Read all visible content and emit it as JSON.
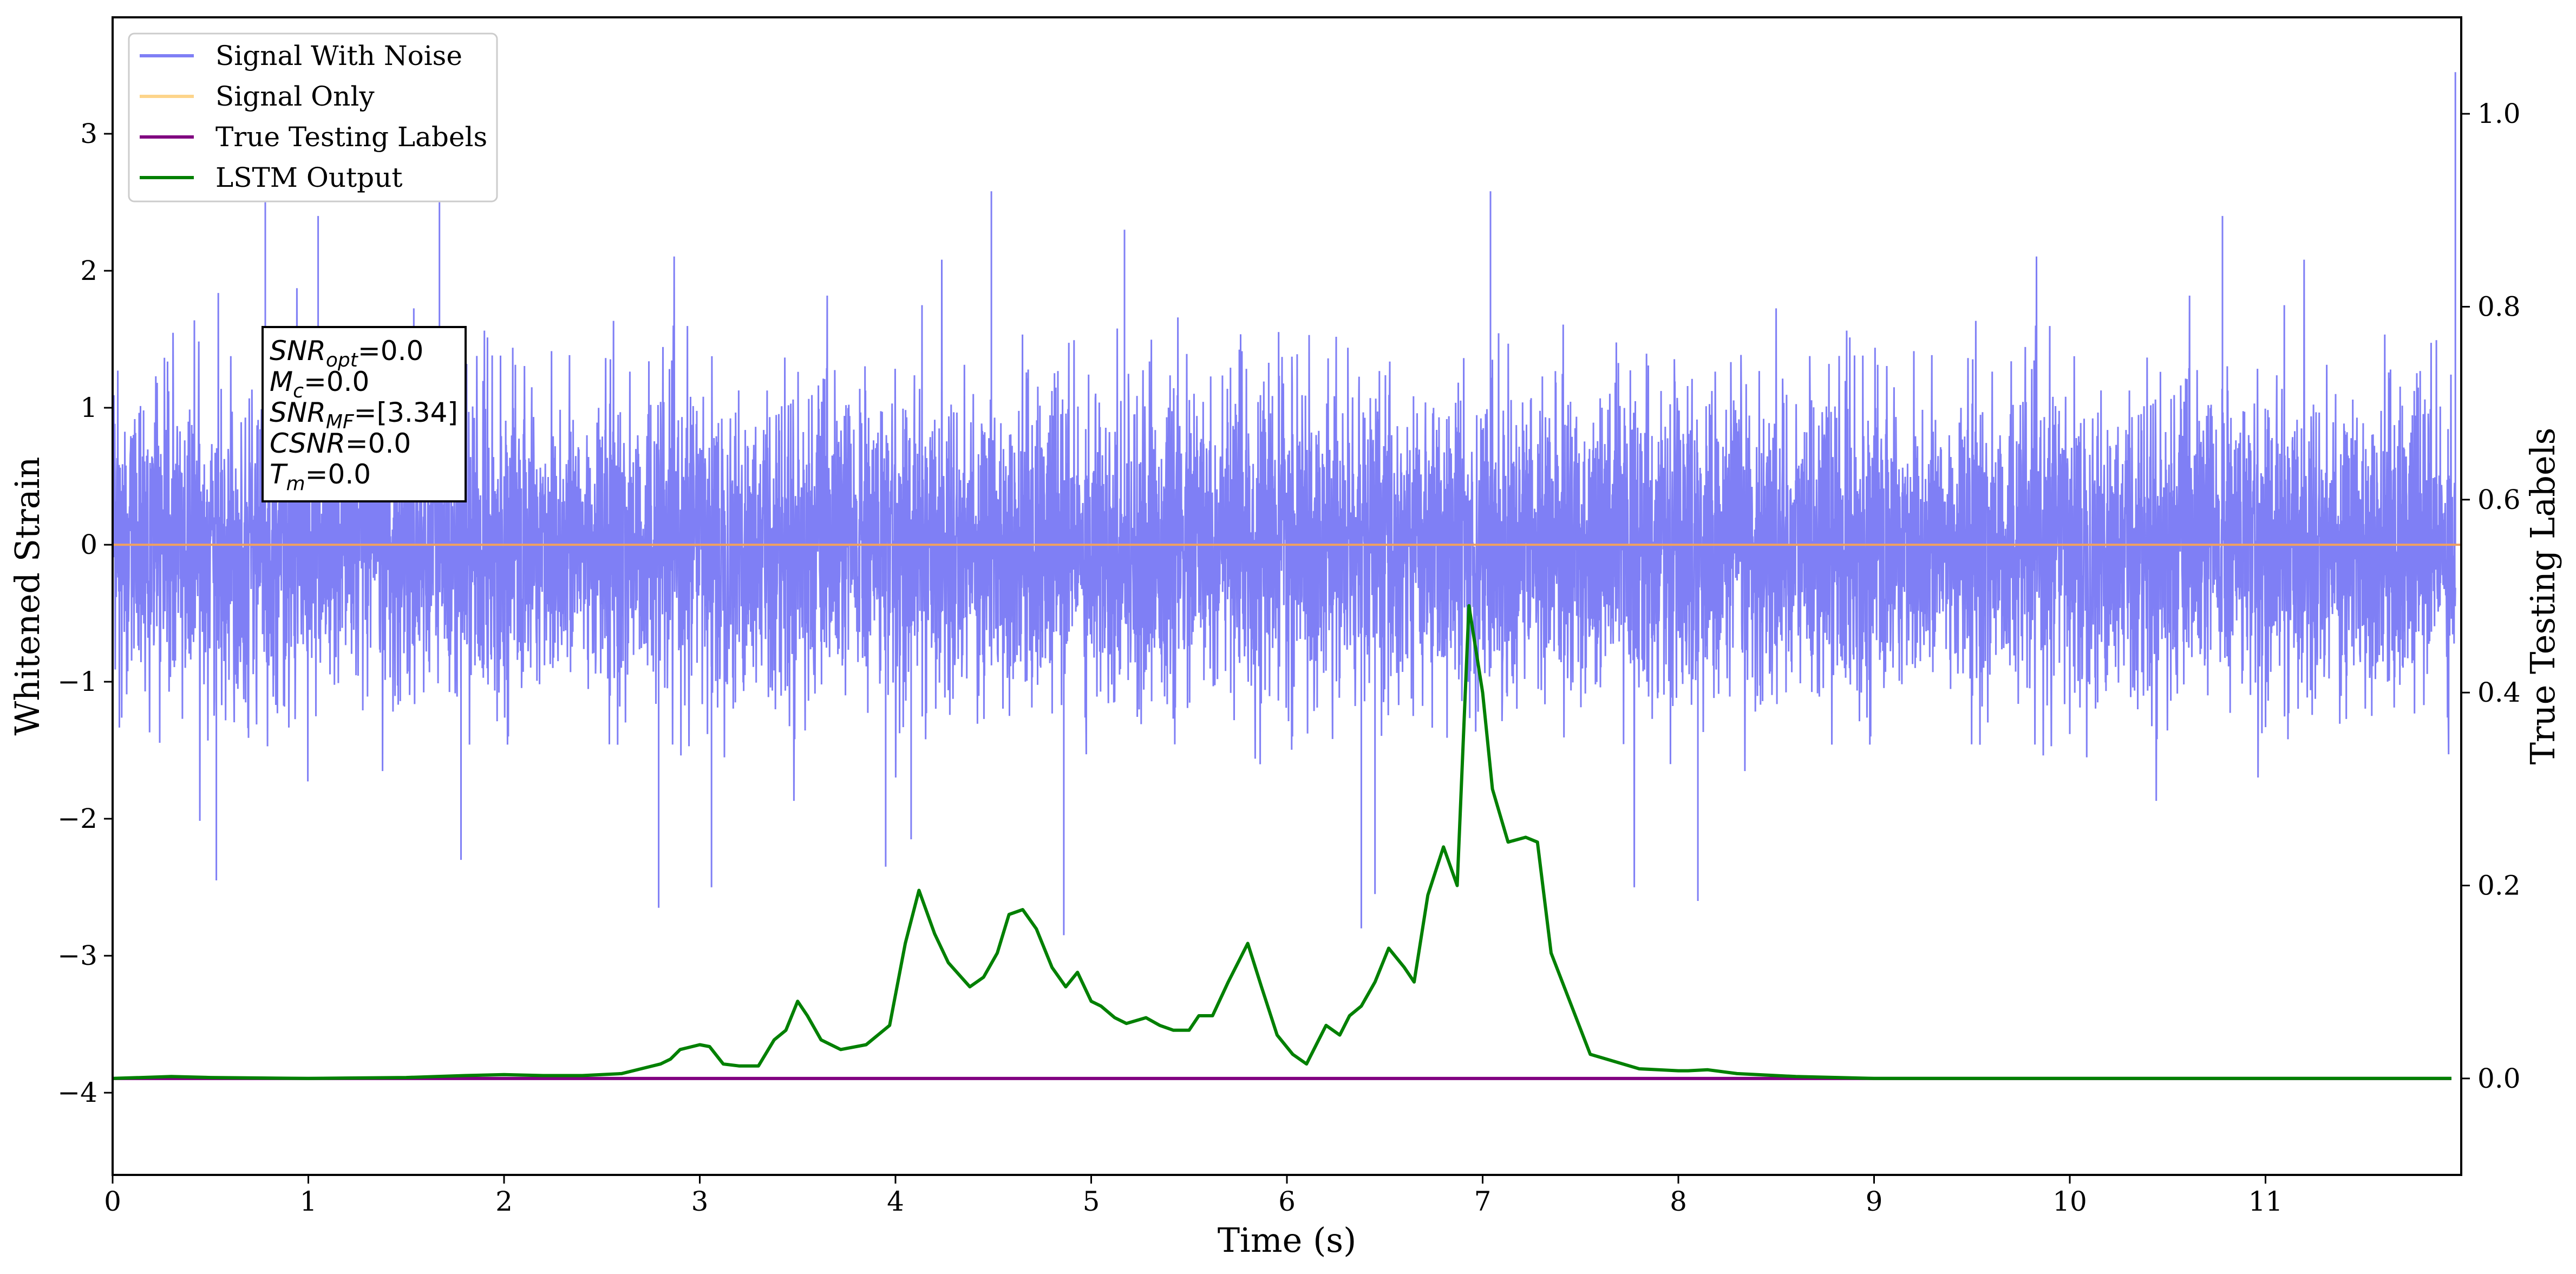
{
  "chart_data": {
    "type": "line",
    "xlabel": "Time (s)",
    "ylabel": "Whitened Strain",
    "ylabel_right": "True Testing Labels",
    "xlim": [
      0,
      12
    ],
    "ylim": [
      -4.6,
      3.85
    ],
    "ylim_right": [
      -0.1,
      1.1
    ],
    "x_ticks": [
      0,
      1,
      2,
      3,
      4,
      5,
      6,
      7,
      8,
      9,
      10,
      11
    ],
    "y_ticks": [
      -4,
      -3,
      -2,
      -1,
      0,
      1,
      2,
      3
    ],
    "y_right_ticks": [
      0.0,
      0.2,
      0.4,
      0.6,
      0.8,
      1.0
    ],
    "grid": false,
    "legend_placement": "upper-left",
    "legend": [
      "Signal With Noise",
      "Signal Only",
      "True Testing Labels",
      "LSTM Output"
    ],
    "colors": {
      "signal_with_noise": "#7f7ff5",
      "signal_only": "#fdd48a",
      "true_testing_labels": "#800080",
      "lstm_output": "#008000",
      "orange_zero_line": "#f0a060"
    },
    "series": [
      {
        "name": "Signal With Noise",
        "axis": "left",
        "noise_std": 0.55,
        "envelope_range": [
          -2.85,
          3.45
        ],
        "spikes": [
          {
            "x": 0.53,
            "y": -2.45
          },
          {
            "x": 0.78,
            "y": 2.5
          },
          {
            "x": 1.05,
            "y": 2.4
          },
          {
            "x": 1.67,
            "y": 2.5
          },
          {
            "x": 1.78,
            "y": -2.3
          },
          {
            "x": 2.79,
            "y": -2.65
          },
          {
            "x": 3.06,
            "y": -2.5
          },
          {
            "x": 3.95,
            "y": -2.35
          },
          {
            "x": 4.08,
            "y": -2.15
          },
          {
            "x": 4.49,
            "y": 2.58
          },
          {
            "x": 4.86,
            "y": -2.85
          },
          {
            "x": 5.17,
            "y": 2.3
          },
          {
            "x": 6.38,
            "y": -2.8
          },
          {
            "x": 6.45,
            "y": -2.55
          },
          {
            "x": 7.04,
            "y": 2.58
          },
          {
            "x": 8.1,
            "y": -2.6
          },
          {
            "x": 10.78,
            "y": 2.4
          },
          {
            "x": 11.97,
            "y": 3.45
          }
        ]
      },
      {
        "name": "Signal Only",
        "axis": "left",
        "x": [
          0,
          12
        ],
        "y": [
          0,
          0
        ]
      },
      {
        "name": "True Testing Labels",
        "axis": "right",
        "x": [
          0,
          11.95
        ],
        "y": [
          0,
          0
        ]
      },
      {
        "name": "LSTM Output",
        "axis": "right",
        "x": [
          0,
          0.3,
          0.5,
          1.0,
          1.5,
          1.8,
          2.0,
          2.2,
          2.4,
          2.6,
          2.7,
          2.8,
          2.85,
          2.9,
          3.0,
          3.05,
          3.12,
          3.2,
          3.3,
          3.38,
          3.44,
          3.5,
          3.55,
          3.62,
          3.72,
          3.85,
          3.97,
          4.05,
          4.12,
          4.2,
          4.27,
          4.38,
          4.45,
          4.52,
          4.58,
          4.65,
          4.72,
          4.8,
          4.87,
          4.93,
          5.0,
          5.05,
          5.12,
          5.18,
          5.28,
          5.35,
          5.42,
          5.5,
          5.55,
          5.62,
          5.7,
          5.8,
          5.87,
          5.95,
          6.03,
          6.1,
          6.15,
          6.2,
          6.27,
          6.32,
          6.38,
          6.45,
          6.52,
          6.6,
          6.65,
          6.72,
          6.8,
          6.87,
          6.93,
          7.0,
          7.05,
          7.13,
          7.22,
          7.28,
          7.35,
          7.55,
          7.8,
          8.0,
          8.05,
          8.15,
          8.3,
          8.6,
          9.0,
          10.0,
          11.0,
          11.95
        ],
        "y": [
          0.0,
          0.002,
          0.001,
          0.0,
          0.001,
          0.003,
          0.004,
          0.003,
          0.003,
          0.005,
          0.01,
          0.015,
          0.02,
          0.03,
          0.035,
          0.033,
          0.015,
          0.013,
          0.013,
          0.04,
          0.05,
          0.08,
          0.065,
          0.04,
          0.03,
          0.035,
          0.055,
          0.14,
          0.195,
          0.15,
          0.12,
          0.095,
          0.105,
          0.13,
          0.17,
          0.175,
          0.155,
          0.115,
          0.095,
          0.11,
          0.08,
          0.075,
          0.063,
          0.057,
          0.063,
          0.055,
          0.05,
          0.05,
          0.065,
          0.065,
          0.1,
          0.14,
          0.095,
          0.045,
          0.025,
          0.015,
          0.035,
          0.055,
          0.045,
          0.065,
          0.075,
          0.1,
          0.135,
          0.115,
          0.1,
          0.19,
          0.24,
          0.2,
          0.49,
          0.4,
          0.3,
          0.245,
          0.25,
          0.245,
          0.13,
          0.025,
          0.01,
          0.008,
          0.008,
          0.009,
          0.005,
          0.002,
          0.0,
          0.0,
          0.0,
          0.0
        ]
      }
    ],
    "annotations": [
      {
        "label": "SNR",
        "sub": "opt",
        "value": "=0.0"
      },
      {
        "label": "M",
        "sub": "c",
        "value": "=0.0"
      },
      {
        "label": "SNR",
        "sub": "MF",
        "value": "=[3.34]"
      },
      {
        "label": "CSNR",
        "sub": "",
        "value": "=0.0"
      },
      {
        "label": "T",
        "sub": "m",
        "value": "=0.0"
      }
    ]
  }
}
